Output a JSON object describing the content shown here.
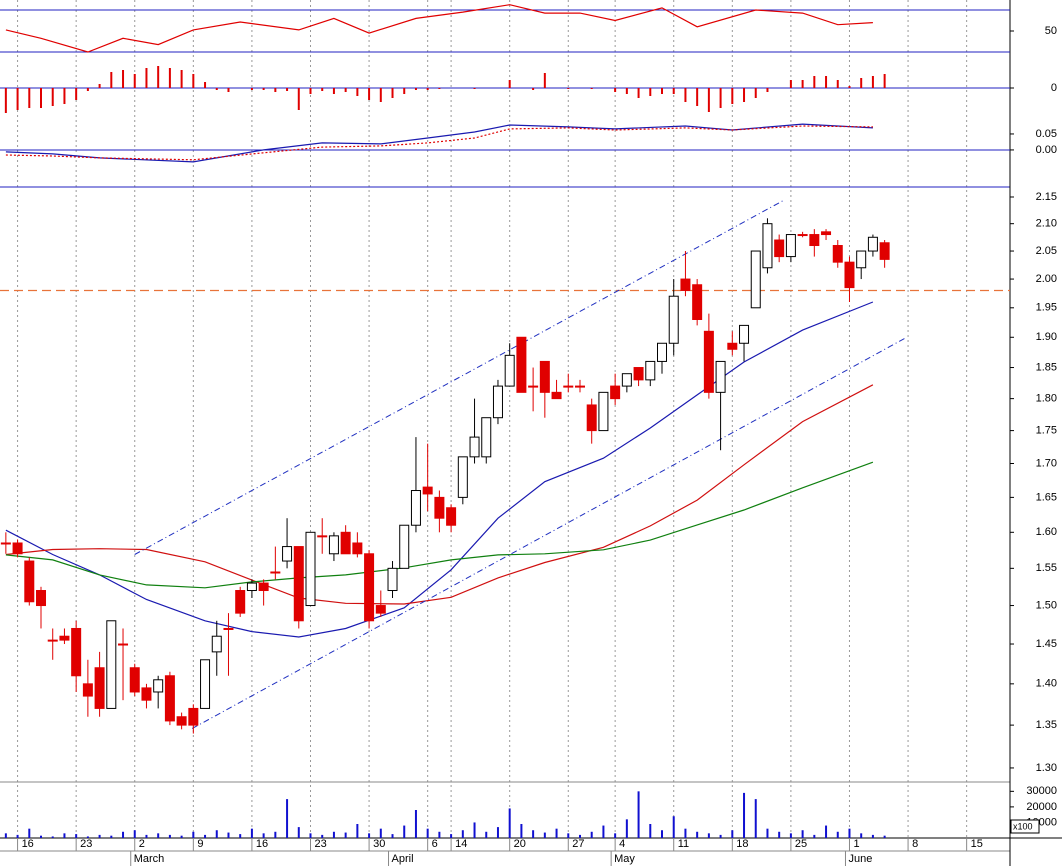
{
  "chart_data": [
    {
      "type": "line",
      "xlim": [
        -0.5,
        85.7
      ],
      "ylim": [
        30,
        79.5
      ],
      "yticks": [
        50
      ],
      "levels": [
        30,
        70
      ],
      "level_color": "#2020c0",
      "series": [
        {
          "color": "#e00000",
          "x": [
            0,
            3,
            7,
            10,
            13,
            16,
            20,
            25,
            28,
            31,
            35,
            39,
            43,
            46,
            49,
            52,
            56,
            59,
            64,
            68,
            71,
            74
          ],
          "values": [
            51,
            43,
            30,
            43,
            37,
            51,
            58.6,
            51,
            62,
            48,
            62,
            68,
            75,
            67,
            67,
            60,
            72,
            54,
            70,
            67,
            56,
            58
          ]
        }
      ]
    },
    {
      "type": "bar",
      "xlim": [
        -0.5,
        85.7
      ],
      "ylim": [
        -25,
        36
      ],
      "yticks": [
        0
      ],
      "zero_line": true,
      "level_color": "#2020c0",
      "color": "#e00000",
      "values": [
        -25,
        -22,
        -20,
        -20,
        -18,
        -16,
        -12,
        -3,
        4,
        16,
        18,
        14,
        20,
        22,
        20,
        18,
        14,
        6,
        -2,
        -4,
        0,
        -2,
        -2,
        -4,
        -3,
        -22,
        -6,
        -3,
        -6,
        -4,
        -8,
        -12,
        -14,
        -10,
        -6,
        -2,
        -2,
        -1,
        0,
        0,
        -1,
        0,
        0,
        8,
        0,
        -2,
        15,
        0,
        -1,
        0,
        -1,
        0,
        -4,
        -6,
        -10,
        -8,
        -6,
        -6,
        -14,
        -18,
        -24,
        -20,
        -16,
        -14,
        -10,
        -4,
        0,
        8,
        8,
        12,
        12,
        8,
        2,
        10,
        12,
        14
      ]
    },
    {
      "type": "line",
      "xlim": [
        -0.5,
        85.7
      ],
      "ylim": [
        -0.116,
        0.125
      ],
      "yticks": [
        {
          "value": 0,
          "label": "0.00"
        },
        0.05
      ],
      "zero_line": true,
      "level_color": "#2020c0",
      "series": [
        {
          "color": "#1a1ab0",
          "x": [
            0,
            4,
            8,
            16,
            22,
            27,
            32,
            36,
            40,
            43,
            48,
            52,
            58,
            62,
            68,
            74
          ],
          "values": [
            -0.006,
            -0.0125,
            -0.025,
            -0.0375,
            0,
            0.022,
            0.019,
            0.0375,
            0.056,
            0.078,
            0.072,
            0.066,
            0.075,
            0.0625,
            0.081,
            0.069
          ]
        },
        {
          "color": "#e00000",
          "dotted": true,
          "x": [
            0,
            4,
            8,
            16,
            22,
            27,
            32,
            36,
            40,
            43,
            48,
            52,
            58,
            62,
            68,
            74
          ],
          "values": [
            -0.016,
            -0.019,
            -0.025,
            -0.031,
            -0.009,
            0.009,
            0.0125,
            0.022,
            0.0375,
            0.066,
            0.069,
            0.0625,
            0.069,
            0.0625,
            0.075,
            0.072
          ]
        }
      ]
    },
    {
      "type": "candlestick",
      "log": true,
      "xlim": [
        -0.5,
        85.7
      ],
      "ylim": [
        1.284,
        2.169
      ],
      "yticks": [
        2.15,
        {
          "value": 2.1,
          "label": "2.10"
        },
        2.05,
        {
          "value": 2,
          "label": "2.00"
        },
        1.95,
        {
          "value": 1.9,
          "label": "1.90"
        },
        1.85,
        {
          "value": 1.8,
          "label": "1.80"
        },
        1.75,
        {
          "value": 1.7,
          "label": "1.70"
        },
        1.65,
        {
          "value": 1.6,
          "label": "1.60"
        },
        1.55,
        {
          "value": 1.5,
          "label": "1.50"
        },
        1.45,
        {
          "value": 1.4,
          "label": "1.40"
        },
        1.35,
        {
          "value": 1.3,
          "label": "1.30"
        }
      ],
      "up_color": "#ffffff",
      "down_color": "#e00000",
      "ohlc": [
        [
          1.585,
          1.6,
          1.57,
          1.585
        ],
        [
          1.585,
          1.59,
          1.565,
          1.57
        ],
        [
          1.56,
          1.565,
          1.5,
          1.505
        ],
        [
          1.52,
          1.525,
          1.47,
          1.5
        ],
        [
          1.455,
          1.47,
          1.43,
          1.455
        ],
        [
          1.46,
          1.47,
          1.45,
          1.455
        ],
        [
          1.47,
          1.48,
          1.39,
          1.41
        ],
        [
          1.4,
          1.43,
          1.36,
          1.385
        ],
        [
          1.42,
          1.44,
          1.36,
          1.37
        ],
        [
          1.37,
          1.48,
          1.37,
          1.48
        ],
        [
          1.45,
          1.47,
          1.38,
          1.45
        ],
        [
          1.42,
          1.425,
          1.385,
          1.39
        ],
        [
          1.395,
          1.4,
          1.37,
          1.38
        ],
        [
          1.39,
          1.41,
          1.37,
          1.405
        ],
        [
          1.41,
          1.415,
          1.35,
          1.355
        ],
        [
          1.36,
          1.365,
          1.345,
          1.35
        ],
        [
          1.37,
          1.375,
          1.34,
          1.35
        ],
        [
          1.37,
          1.43,
          1.37,
          1.43
        ],
        [
          1.44,
          1.48,
          1.41,
          1.46
        ],
        [
          1.47,
          1.49,
          1.41,
          1.47
        ],
        [
          1.52,
          1.525,
          1.485,
          1.49
        ],
        [
          1.52,
          1.535,
          1.51,
          1.53
        ],
        [
          1.53,
          1.535,
          1.5,
          1.52
        ],
        [
          1.545,
          1.58,
          1.535,
          1.545
        ],
        [
          1.56,
          1.62,
          1.55,
          1.58
        ],
        [
          1.58,
          1.58,
          1.47,
          1.48
        ],
        [
          1.5,
          1.6,
          1.5,
          1.6
        ],
        [
          1.595,
          1.62,
          1.57,
          1.595
        ],
        [
          1.57,
          1.6,
          1.56,
          1.595
        ],
        [
          1.6,
          1.61,
          1.57,
          1.57
        ],
        [
          1.585,
          1.6,
          1.565,
          1.57
        ],
        [
          1.57,
          1.575,
          1.47,
          1.48
        ],
        [
          1.5,
          1.52,
          1.485,
          1.49
        ],
        [
          1.52,
          1.56,
          1.51,
          1.55
        ],
        [
          1.55,
          1.61,
          1.55,
          1.61
        ],
        [
          1.61,
          1.74,
          1.6,
          1.66
        ],
        [
          1.665,
          1.73,
          1.63,
          1.655
        ],
        [
          1.65,
          1.66,
          1.6,
          1.62
        ],
        [
          1.635,
          1.64,
          1.6,
          1.61
        ],
        [
          1.65,
          1.71,
          1.64,
          1.71
        ],
        [
          1.71,
          1.8,
          1.7,
          1.74
        ],
        [
          1.71,
          1.77,
          1.7,
          1.77
        ],
        [
          1.77,
          1.83,
          1.76,
          1.82
        ],
        [
          1.82,
          1.89,
          1.82,
          1.87
        ],
        [
          1.9,
          1.9,
          1.81,
          1.81
        ],
        [
          1.82,
          1.85,
          1.78,
          1.82
        ],
        [
          1.86,
          1.86,
          1.77,
          1.81
        ],
        [
          1.81,
          1.83,
          1.8,
          1.8
        ],
        [
          1.82,
          1.84,
          1.81,
          1.82
        ],
        [
          1.82,
          1.83,
          1.81,
          1.82
        ],
        [
          1.79,
          1.8,
          1.73,
          1.75
        ],
        [
          1.75,
          1.81,
          1.75,
          1.81
        ],
        [
          1.82,
          1.84,
          1.79,
          1.8
        ],
        [
          1.82,
          1.84,
          1.81,
          1.84
        ],
        [
          1.85,
          1.85,
          1.82,
          1.83
        ],
        [
          1.83,
          1.86,
          1.82,
          1.86
        ],
        [
          1.86,
          1.89,
          1.84,
          1.89
        ],
        [
          1.89,
          2,
          1.87,
          1.97
        ],
        [
          2,
          2.05,
          1.97,
          1.98
        ],
        [
          1.99,
          2,
          1.92,
          1.93
        ],
        [
          1.91,
          1.94,
          1.8,
          1.81
        ],
        [
          1.81,
          1.86,
          1.72,
          1.86
        ],
        [
          1.89,
          1.91,
          1.87,
          1.88
        ],
        [
          1.89,
          1.92,
          1.86,
          1.92
        ],
        [
          1.95,
          2.05,
          1.95,
          2.05
        ],
        [
          2.02,
          2.11,
          2.01,
          2.1
        ],
        [
          2.07,
          2.08,
          2.03,
          2.04
        ],
        [
          2.04,
          2.08,
          2.03,
          2.08
        ],
        [
          2.08,
          2.085,
          2.075,
          2.08
        ],
        [
          2.08,
          2.09,
          2.04,
          2.06
        ],
        [
          2.085,
          2.09,
          2.07,
          2.08
        ],
        [
          2.06,
          2.07,
          2.02,
          2.03
        ],
        [
          2.03,
          2.04,
          1.96,
          1.985
        ],
        [
          2.02,
          2.05,
          2,
          2.05
        ],
        [
          2.05,
          2.08,
          2.04,
          2.075
        ],
        [
          2.065,
          2.07,
          2.02,
          2.035
        ]
      ],
      "series": [
        {
          "color": "#1a1ab0",
          "x": [
            0,
            4,
            8,
            12,
            17,
            21,
            25,
            29,
            34,
            38,
            42,
            46,
            51,
            55,
            59,
            63,
            68,
            74
          ],
          "values": [
            1.603,
            1.569,
            1.541,
            1.508,
            1.48,
            1.466,
            1.459,
            1.47,
            1.497,
            1.548,
            1.62,
            1.673,
            1.708,
            1.754,
            1.806,
            1.859,
            1.912,
            1.96
          ]
        },
        {
          "color": "#d01010",
          "x": [
            0,
            4,
            8,
            12,
            17,
            21,
            25,
            29,
            34,
            38,
            42,
            46,
            51,
            55,
            59,
            63,
            68,
            74
          ],
          "values": [
            1.569,
            1.576,
            1.577,
            1.576,
            1.559,
            1.534,
            1.51,
            1.503,
            1.502,
            1.511,
            1.537,
            1.558,
            1.579,
            1.609,
            1.646,
            1.698,
            1.764,
            1.822
          ]
        },
        {
          "color": "#108010",
          "x": [
            0,
            4,
            8,
            12,
            17,
            21,
            25,
            29,
            34,
            38,
            42,
            46,
            51,
            55,
            59,
            63,
            68,
            74
          ],
          "values": [
            1.5685,
            1.5616,
            1.541,
            1.5276,
            1.5237,
            1.5316,
            1.537,
            1.541,
            1.5507,
            1.5616,
            1.5685,
            1.57,
            1.5755,
            1.589,
            1.6105,
            1.6318,
            1.664,
            1.702
          ]
        }
      ],
      "lines": [
        {
          "color": "#2030c0",
          "x": [
            11,
            66.5
          ],
          "values": [
            1.569,
            2.145
          ]
        },
        {
          "color": "#2030c0",
          "x": [
            15.9,
            76.7
          ],
          "values": [
            1.346,
            1.898
          ]
        }
      ],
      "hlines": [
        {
          "value": 1.98,
          "color": "#e8733a"
        }
      ]
    },
    {
      "type": "bar",
      "xlim": [
        -0.5,
        85.7
      ],
      "ylim": [
        0,
        36000
      ],
      "yticks": [
        10000,
        20000,
        30000
      ],
      "unit_label": "x100",
      "color": "#1010d0",
      "values": [
        3000,
        2000,
        6000,
        1500,
        1000,
        3000,
        2500,
        1000,
        2000,
        1500,
        4000,
        5000,
        2000,
        3000,
        2000,
        1500,
        4000,
        2000,
        5000,
        3500,
        2500,
        6000,
        3000,
        4000,
        25000,
        7000,
        3000,
        2000,
        4000,
        3500,
        9000,
        3000,
        6000,
        2500,
        8000,
        18000,
        6000,
        4000,
        2500,
        5000,
        10000,
        4000,
        7000,
        19000,
        9000,
        5000,
        3500,
        6000,
        3000,
        2000,
        4000,
        8000,
        3000,
        12000,
        30000,
        9000,
        5000,
        14000,
        6000,
        4000,
        3000,
        2000,
        5000,
        29000,
        25000,
        6000,
        4000,
        3000,
        5000,
        2000,
        8000,
        4000,
        6000,
        3000,
        2000,
        1500
      ],
      "xticks": [
        {
          "value": 1,
          "label": "16"
        },
        {
          "value": 6,
          "label": "23"
        },
        {
          "value": 11,
          "label": "2"
        },
        {
          "value": 16,
          "label": "9"
        },
        {
          "value": 21,
          "label": "16"
        },
        {
          "value": 26,
          "label": "23"
        },
        {
          "value": 31,
          "label": "30"
        },
        {
          "value": 36,
          "label": "6"
        },
        {
          "value": 38,
          "label": "14"
        },
        {
          "value": 43,
          "label": "20"
        },
        {
          "value": 48,
          "label": "27"
        },
        {
          "value": 52,
          "label": "4"
        },
        {
          "value": 57,
          "label": "11"
        },
        {
          "value": 62,
          "label": "18"
        },
        {
          "value": 67,
          "label": "25"
        },
        {
          "value": 72,
          "label": "1"
        },
        {
          "value": 77,
          "label": "8"
        },
        {
          "value": 82,
          "label": "15"
        }
      ],
      "month_labels": [
        {
          "value": 11,
          "label": "March"
        },
        {
          "value": 33,
          "label": "April"
        },
        {
          "value": 52,
          "label": "May"
        },
        {
          "value": 72,
          "label": "June"
        }
      ]
    }
  ]
}
